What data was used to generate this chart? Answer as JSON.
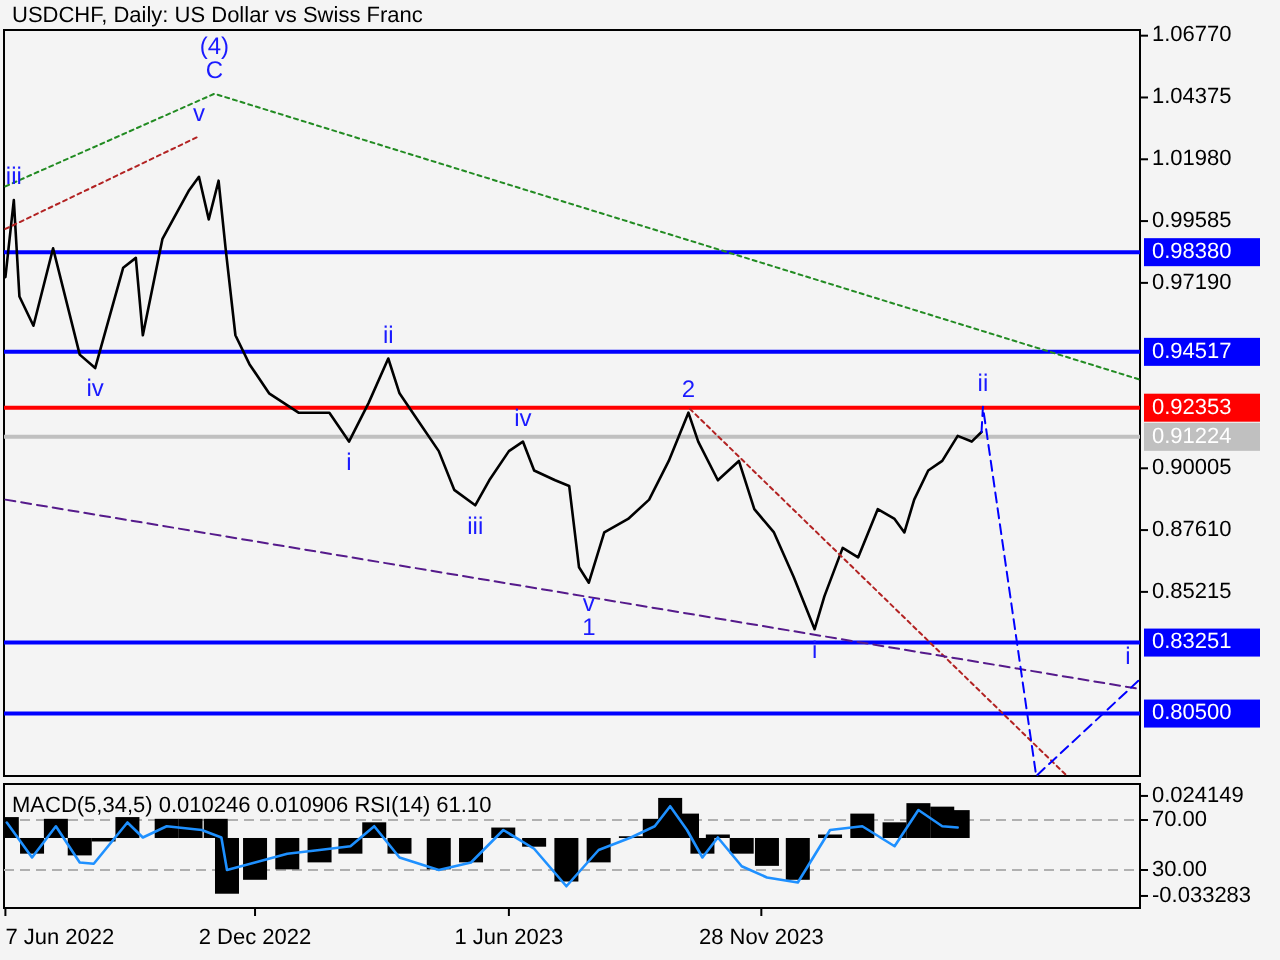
{
  "chart_data": [
    {
      "type": "line",
      "title": "USDCHF, Daily:  US Dollar vs Swiss Franc",
      "xlim": [
        "2022-06-06",
        "2024-08-24"
      ],
      "ylim": [
        0.7808,
        1.0699
      ],
      "tick_labels": "y",
      "yticks": [
        {
          "value": 1.0677,
          "label": "1.06770"
        },
        {
          "value": 1.04375,
          "label": "1.04375"
        },
        {
          "value": 1.0198,
          "label": "1.01980"
        },
        {
          "value": 0.99585,
          "label": "0.99585"
        },
        {
          "value": 0.9719,
          "label": "0.97190"
        },
        {
          "value": 0.90005,
          "label": "0.90005"
        },
        {
          "value": 0.8761,
          "label": "0.87610"
        },
        {
          "value": 0.85215,
          "label": "0.85215"
        }
      ],
      "series": [
        {
          "color": "#000000",
          "x": [
            "2022-06-07",
            "2022-06-13",
            "2022-06-17",
            "2022-06-27",
            "2022-07-11",
            "2022-07-30",
            "2022-08-10",
            "2022-08-30",
            "2022-09-08",
            "2022-09-13",
            "2022-09-27",
            "2022-10-16",
            "2022-10-23",
            "2022-10-30",
            "2022-11-06",
            "2022-11-11",
            "2022-11-18",
            "2022-11-28",
            "2022-12-12",
            "2023-01-02",
            "2023-01-24",
            "2023-02-07",
            "2023-02-21",
            "2023-03-07",
            "2023-03-15",
            "2023-03-29",
            "2023-04-12",
            "2023-04-23",
            "2023-05-08",
            "2023-05-18",
            "2023-06-01",
            "2023-06-11",
            "2023-06-19",
            "2023-07-04",
            "2023-07-14",
            "2023-07-21",
            "2023-07-28",
            "2023-08-08",
            "2023-08-25",
            "2023-09-09",
            "2023-09-23",
            "2023-10-07",
            "2023-10-14",
            "2023-10-28",
            "2023-11-12",
            "2023-11-23",
            "2023-12-07",
            "2023-12-21",
            "2024-01-05",
            "2024-01-12",
            "2024-01-25",
            "2024-02-05",
            "2024-02-19",
            "2024-03-02",
            "2024-03-09",
            "2024-03-16",
            "2024-03-26",
            "2024-04-05",
            "2024-04-16",
            "2024-04-26",
            "2024-05-03"
          ],
          "values": [
            0.9741,
            1.004,
            0.9666,
            0.9553,
            0.9853,
            0.9441,
            0.9389,
            0.9778,
            0.9816,
            0.9516,
            0.989,
            1.0078,
            1.013,
            0.9965,
            1.0115,
            0.9853,
            0.9516,
            0.9404,
            0.9291,
            0.9216,
            0.9216,
            0.9104,
            0.9254,
            0.9426,
            0.9291,
            0.9179,
            0.9067,
            0.8917,
            0.8857,
            0.8954,
            0.9067,
            0.9104,
            0.8992,
            0.8954,
            0.8932,
            0.8617,
            0.8557,
            0.8752,
            0.8804,
            0.8879,
            0.9029,
            0.9216,
            0.9104,
            0.8954,
            0.9029,
            0.8842,
            0.8752,
            0.858,
            0.8377,
            0.8505,
            0.8692,
            0.8655,
            0.8842,
            0.8804,
            0.8752,
            0.8879,
            0.8992,
            0.9029,
            0.9126,
            0.9104,
            0.9141
          ]
        },
        {
          "color": "#228b22",
          "line_style": "dotted",
          "x": [
            "2022-06-07",
            "2022-11-03",
            "2024-08-24"
          ],
          "values": [
            1.0093,
            1.0452,
            0.9344
          ]
        },
        {
          "color": "#b22222",
          "line_style": "dotted",
          "x": [
            "2022-06-07",
            "2022-10-23"
          ],
          "values": [
            0.9928,
            1.0287
          ]
        },
        {
          "color": "#b22222",
          "line_style": "dotted",
          "x": [
            "2023-10-08",
            "2024-07-03"
          ],
          "values": [
            0.9231,
            0.7808
          ]
        },
        {
          "color": "#551a8b",
          "line_style": "dashed",
          "x": [
            "2022-06-07",
            "2024-08-24"
          ],
          "values": [
            0.8879,
            0.8145
          ]
        },
        {
          "color": "#0000ff",
          "line_style": "dashed",
          "x": [
            "2024-05-03",
            "2024-05-04",
            "2024-06-11",
            "2024-08-24"
          ],
          "values": [
            0.9141,
            0.9239,
            0.7808,
            0.8183
          ]
        }
      ],
      "ref_lines": [
        {
          "axis": "y",
          "value": 0.9838,
          "label": "0.98380",
          "color": "#0000ff"
        },
        {
          "axis": "y",
          "value": 0.94517,
          "label": "0.94517",
          "color": "#0000ff"
        },
        {
          "axis": "y",
          "value": 0.92353,
          "label": "0.92353",
          "color": "#ff0000"
        },
        {
          "axis": "y",
          "value": 0.91224,
          "label": "0.91224",
          "color": "#c0c0c0"
        },
        {
          "axis": "y",
          "value": 0.83251,
          "label": "0.83251",
          "color": "#0000ff"
        },
        {
          "axis": "y",
          "value": 0.805,
          "label": "0.80500",
          "color": "#0000ff"
        }
      ],
      "annotations": [
        {
          "text": "C",
          "x": "2022-11-03",
          "y": 1.0452
        },
        {
          "text": "(4)",
          "x": "2022-11-03",
          "y": 1.0452
        },
        {
          "text": "v",
          "x": "2022-10-23",
          "y": 1.0287
        },
        {
          "text": "iii",
          "x": "2022-06-13",
          "y": 1.004
        },
        {
          "text": "iv",
          "x": "2022-08-10",
          "y": 0.9389
        },
        {
          "text": "ii",
          "x": "2023-03-07",
          "y": 0.9426
        },
        {
          "text": "i",
          "x": "2023-02-07",
          "y": 0.9104
        },
        {
          "text": "iii",
          "x": "2023-05-08",
          "y": 0.8857
        },
        {
          "text": "iv",
          "x": "2023-06-11",
          "y": 0.9104
        },
        {
          "text": "v",
          "x": "2023-07-28",
          "y": 0.8557
        },
        {
          "text": "1",
          "x": "2023-07-28",
          "y": 0.8557
        },
        {
          "text": "2",
          "x": "2023-10-07",
          "y": 0.9216
        },
        {
          "text": "i",
          "x": "2024-01-05",
          "y": 0.8377
        },
        {
          "text": "ii",
          "x": "2024-05-04",
          "y": 0.9239
        },
        {
          "text": "i",
          "x": "2024-08-24",
          "y": 0.8183
        }
      ]
    },
    {
      "type": "bar",
      "title": "MACD(5,34,5) 0.010246 0.010906 RSI(14) 61.10",
      "xlim": [
        "2022-06-06",
        "2024-08-24"
      ],
      "ylim": [
        -0.0402,
        0.031
      ],
      "y2lim": [
        -0.4,
        98.8
      ],
      "yticks": [
        0.024149,
        -0.033283
      ],
      "y2ticks": [
        {
          "value": 70,
          "label": "70.00"
        },
        {
          "value": 30,
          "label": "30.00"
        }
      ],
      "xticks": [
        {
          "value": "2022-06-07",
          "label": "7 Jun 2022"
        },
        {
          "value": "2022-12-02",
          "label": "2 Dec 2022"
        },
        {
          "value": "2023-06-01",
          "label": "1 Jun 2023"
        },
        {
          "value": "2023-11-28",
          "label": "28 Nov 2023"
        }
      ],
      "ref_lines": [
        {
          "axis": "y2",
          "value": 70,
          "color": "#b0b0b0",
          "line_style": "dashed"
        },
        {
          "axis": "y2",
          "value": 30,
          "color": "#b0b0b0",
          "line_style": "dashed"
        }
      ],
      "series": [
        {
          "color": "#000000",
          "x": [
            "2022-06-08",
            "2022-06-26",
            "2022-07-13",
            "2022-07-30",
            "2022-08-16",
            "2022-09-02",
            "2022-09-13",
            "2022-09-30",
            "2022-10-17",
            "2022-11-04",
            "2022-11-12",
            "2022-12-02",
            "2022-12-25",
            "2023-01-17",
            "2023-02-08",
            "2023-02-25",
            "2023-03-15",
            "2023-04-12",
            "2023-05-05",
            "2023-05-28",
            "2023-06-19",
            "2023-07-12",
            "2023-08-04",
            "2023-08-27",
            "2023-09-13",
            "2023-09-24",
            "2023-10-06",
            "2023-10-17",
            "2023-10-28",
            "2023-11-14",
            "2023-12-02",
            "2023-12-24",
            "2024-01-16",
            "2024-02-08",
            "2024-03-02",
            "2024-03-19",
            "2024-04-05",
            "2024-04-16"
          ],
          "values": [
            0.012,
            -0.009,
            0.011,
            -0.01,
            -0.002,
            0.012,
            0,
            0.011,
            0.011,
            0.011,
            -0.032,
            -0.024,
            -0.018,
            -0.014,
            -0.009,
            0.009,
            -0.009,
            -0.018,
            -0.014,
            0.006,
            -0.005,
            -0.025,
            -0.014,
            0.001,
            0.011,
            0.023,
            0.014,
            -0.009,
            0.002,
            -0.009,
            -0.016,
            -0.024,
            0.002,
            0.014,
            0.009,
            0.02,
            0.018,
            0.016
          ]
        },
        {
          "type": "line",
          "axis": "y2",
          "color": "#1e90ff",
          "x": [
            "2022-06-08",
            "2022-06-26",
            "2022-07-13",
            "2022-07-30",
            "2022-08-09",
            "2022-09-02",
            "2022-09-13",
            "2022-09-30",
            "2022-10-25",
            "2022-11-08",
            "2022-11-12",
            "2022-12-02",
            "2022-12-25",
            "2023-01-17",
            "2023-02-08",
            "2023-02-25",
            "2023-03-15",
            "2023-04-12",
            "2023-05-05",
            "2023-05-28",
            "2023-06-19",
            "2023-07-12",
            "2023-08-04",
            "2023-08-27",
            "2023-09-13",
            "2023-09-24",
            "2023-10-06",
            "2023-10-17",
            "2023-10-28",
            "2023-11-14",
            "2023-12-02",
            "2023-12-24",
            "2024-01-16",
            "2024-02-08",
            "2024-03-02",
            "2024-03-19",
            "2024-04-05",
            "2024-04-16"
          ],
          "values": [
            68,
            40,
            65,
            36,
            35,
            68,
            56,
            65,
            62,
            56,
            30,
            36,
            43,
            46,
            49,
            65,
            40,
            30,
            36,
            62,
            47,
            17,
            46,
            56,
            65,
            81,
            62,
            40,
            56,
            33,
            24,
            20,
            62,
            65,
            49,
            78,
            65,
            64
          ]
        }
      ]
    }
  ]
}
